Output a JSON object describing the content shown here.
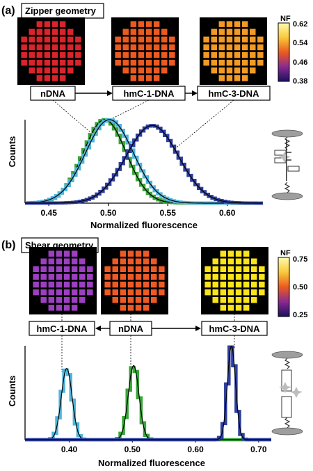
{
  "panels": [
    {
      "id": "a",
      "label": "(a)",
      "title": "Zipper geometry",
      "colorbar": {
        "title": "NF",
        "ticks": [
          "0.62",
          "0.54",
          "0.46",
          "0.38"
        ]
      },
      "arrays": [
        {
          "name": "nDNA",
          "color": "#d8242a"
        },
        {
          "name": "hmC-1-DNA",
          "color": "#ec5a20"
        },
        {
          "name": "hmC-3-DNA",
          "color": "#f39a24"
        }
      ],
      "flow": [
        "nDNA",
        "hmC-1-DNA",
        "hmC-3-DNA"
      ]
    },
    {
      "id": "b",
      "label": "(b)",
      "title": "Shear geometry",
      "colorbar": {
        "title": "NF",
        "ticks": [
          "0.75",
          "0.50",
          "0.25"
        ]
      },
      "arrays": [
        {
          "name": "hmC-1-DNA",
          "color": "#9c3fc0"
        },
        {
          "name": "nDNA",
          "color": "#ef5a24"
        },
        {
          "name": "hmC-3-DNA",
          "color": "#fbe419"
        }
      ],
      "flow": [
        "hmC-1-DNA",
        "nDNA",
        "hmC-3-DNA"
      ]
    }
  ],
  "chart_data": [
    {
      "type": "histogram",
      "panel": "a",
      "xlabel": "Normalized fluorescence",
      "ylabel": "Counts",
      "xlim": [
        0.43,
        0.63
      ],
      "xticks": [
        "0.45",
        "0.50",
        "0.55",
        "0.60"
      ],
      "series": [
        {
          "name": "nDNA",
          "color": "#3aa63a",
          "mean": 0.497,
          "sd": 0.018,
          "amplitude": 1.0
        },
        {
          "name": "hmC-1-DNA",
          "color": "#4fb5dd",
          "mean": 0.501,
          "sd": 0.02,
          "amplitude": 1.0
        },
        {
          "name": "hmC-3-DNA",
          "color": "#2e3f9e",
          "mean": 0.537,
          "sd": 0.022,
          "amplitude": 0.93
        }
      ]
    },
    {
      "type": "histogram",
      "panel": "b",
      "xlabel": "Normalized fluorescence",
      "ylabel": "Counts",
      "xlim": [
        0.33,
        0.72
      ],
      "xticks": [
        "0.40",
        "0.50",
        "0.60",
        "0.70"
      ],
      "series": [
        {
          "name": "hmC-1-DNA",
          "color": "#4fb5dd",
          "mean": 0.396,
          "sd": 0.0085,
          "amplitude": 0.76
        },
        {
          "name": "nDNA",
          "color": "#3aa63a",
          "mean": 0.502,
          "sd": 0.0085,
          "amplitude": 0.79
        },
        {
          "name": "hmC-3-DNA",
          "color": "#2e3f9e",
          "mean": 0.657,
          "sd": 0.0065,
          "amplitude": 1.0
        }
      ]
    }
  ]
}
